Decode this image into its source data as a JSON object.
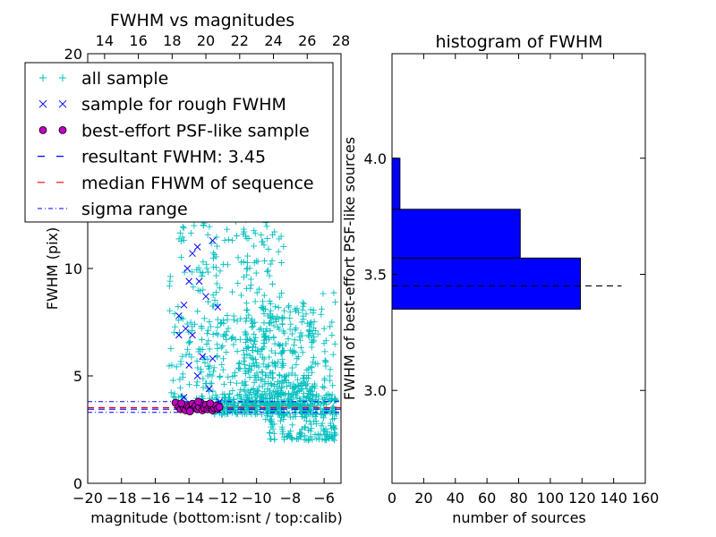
{
  "chart_data": [
    {
      "type": "scatter",
      "title": "FWHM vs magnitudes",
      "xlabel": "magnitude (bottom:isnt / top:calib)",
      "ylabel": "FWHM (pix)",
      "xlim": [
        -20,
        -5
      ],
      "ylim": [
        0,
        20
      ],
      "xticks": [
        "−20",
        "−18",
        "−16",
        "−14",
        "−12",
        "−10",
        "−8",
        "−6"
      ],
      "yticks": [
        "0",
        "5",
        "10",
        "15",
        "20"
      ],
      "top_xlim": [
        13,
        28
      ],
      "top_xticks": [
        "14",
        "16",
        "18",
        "20",
        "22",
        "24",
        "26",
        "28"
      ],
      "grid": false,
      "legend": {
        "placement": "upper-left",
        "entries": [
          {
            "label": "all sample",
            "marker": "plus",
            "color": "#00bfbf"
          },
          {
            "label": "sample for rough FWHM",
            "marker": "x",
            "color": "#0000ff"
          },
          {
            "label": "best-effort PSF-like sample",
            "marker": "circle",
            "color": "#bf00bf"
          },
          {
            "label": "resultant FWHM: 3.45",
            "marker": "dash",
            "color": "#0000ff"
          },
          {
            "label": "median FHWM of sequence",
            "marker": "dash",
            "color": "#ff0000"
          },
          {
            "label": "sigma range",
            "marker": "dashdot",
            "color": "#0000ff"
          }
        ]
      },
      "lines": {
        "resultant_fwhm": 3.45,
        "median_fwhm": 3.52,
        "sigma_low": 3.3,
        "sigma_high": 3.8
      },
      "series": [
        {
          "name": "all sample",
          "clusters": [
            {
              "xrange": [
                -15.2,
                -12.3
              ],
              "yrange": [
                3.6,
                15
              ],
              "n": 170
            },
            {
              "xrange": [
                -12.8,
                -10.5
              ],
              "yrange": [
                3.4,
                17
              ],
              "n": 190
            },
            {
              "xrange": [
                -10.6,
                -8.3
              ],
              "yrange": [
                3.4,
                19.5
              ],
              "n": 170
            },
            {
              "xrange": [
                -10.8,
                -6.5
              ],
              "yrange": [
                3.6,
                8.5
              ],
              "n": 380
            },
            {
              "xrange": [
                -12.5,
                -5.2
              ],
              "yrange": [
                3.2,
                4.2
              ],
              "n": 240
            },
            {
              "xrange": [
                -9.5,
                -5.3
              ],
              "yrange": [
                2.0,
                3.6
              ],
              "n": 150
            },
            {
              "xrange": [
                -6.4,
                -5.3
              ],
              "yrange": [
                3.8,
                9.2
              ],
              "n": 35
            }
          ]
        },
        {
          "name": "sample for rough FWHM",
          "points": [
            [
              -13.6,
              15.2
            ],
            [
              -12.4,
              15.0
            ],
            [
              -13.3,
              13.1
            ],
            [
              -12.9,
              12.4
            ],
            [
              -12.6,
              11.3
            ],
            [
              -13.5,
              11.0
            ],
            [
              -14.7,
              12.6
            ],
            [
              -13.8,
              10.7
            ],
            [
              -14.1,
              10.0
            ],
            [
              -14.0,
              9.4
            ],
            [
              -13.4,
              9.4
            ],
            [
              -14.3,
              8.3
            ],
            [
              -13.0,
              8.7
            ],
            [
              -12.3,
              8.2
            ],
            [
              -14.6,
              7.8
            ],
            [
              -14.2,
              7.2
            ],
            [
              -13.8,
              6.9
            ],
            [
              -14.6,
              6.9
            ],
            [
              -13.2,
              5.9
            ],
            [
              -12.6,
              5.8
            ],
            [
              -14.0,
              5.5
            ],
            [
              -13.5,
              5.0
            ],
            [
              -12.8,
              4.4
            ],
            [
              -14.3,
              4.0
            ],
            [
              -12.2,
              3.8
            ],
            [
              -13.9,
              3.7
            ],
            [
              -13.1,
              3.6
            ]
          ]
        },
        {
          "name": "best-effort PSF-like sample",
          "points": [
            [
              -14.8,
              3.75
            ],
            [
              -14.6,
              3.55
            ],
            [
              -14.5,
              3.45
            ],
            [
              -14.4,
              3.65
            ],
            [
              -14.3,
              3.5
            ],
            [
              -14.2,
              3.4
            ],
            [
              -14.1,
              3.6
            ],
            [
              -14.0,
              3.52
            ],
            [
              -13.9,
              3.42
            ],
            [
              -13.8,
              3.7
            ],
            [
              -13.7,
              3.5
            ],
            [
              -13.6,
              3.6
            ],
            [
              -13.5,
              3.45
            ],
            [
              -13.4,
              3.55
            ],
            [
              -13.3,
              3.75
            ],
            [
              -13.2,
              3.4
            ],
            [
              -13.1,
              3.5
            ],
            [
              -13.0,
              3.65
            ],
            [
              -12.9,
              3.45
            ],
            [
              -12.8,
              3.55
            ],
            [
              -12.7,
              3.6
            ],
            [
              -12.6,
              3.4
            ],
            [
              -12.5,
              3.5
            ],
            [
              -12.4,
              3.62
            ],
            [
              -12.3,
              3.48
            ],
            [
              -12.2,
              3.55
            ],
            [
              -13.45,
              3.8
            ],
            [
              -14.45,
              3.72
            ],
            [
              -12.75,
              3.72
            ],
            [
              -13.95,
              3.35
            ]
          ]
        }
      ]
    },
    {
      "type": "bar",
      "orientation": "horizontal",
      "title": "histogram of FWHM",
      "xlabel": "number of sources",
      "ylabel": "FWHM of best-effort PSF-like sources",
      "xlim": [
        0,
        160
      ],
      "ylim": [
        2.6,
        4.45
      ],
      "xticks": [
        "0",
        "20",
        "40",
        "60",
        "80",
        "100",
        "120",
        "140",
        "160"
      ],
      "yticks": [
        "3.0",
        "3.5",
        "4.0"
      ],
      "bins": [
        {
          "low": 3.35,
          "high": 3.57,
          "count": 119
        },
        {
          "low": 3.57,
          "high": 3.78,
          "count": 81
        },
        {
          "low": 3.78,
          "high": 4.0,
          "count": 5
        }
      ],
      "reference_line": {
        "y": 3.45,
        "xmax": 145
      },
      "bar_color": "#0000ff"
    }
  ]
}
